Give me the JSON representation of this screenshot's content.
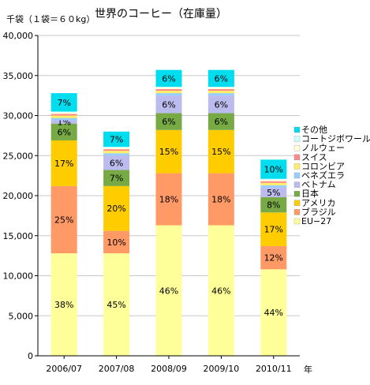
{
  "chart_data": {
    "type": "bar",
    "stacked": true,
    "title": "世界のコーヒー（在庫量）",
    "ylabel": "千袋（１袋＝６０kg）",
    "xlabel": "年",
    "ylim": [
      0,
      40000
    ],
    "yticks": [
      "0",
      "5,000",
      "10,000",
      "15,000",
      "20,000",
      "25,000",
      "30,000",
      "35,000",
      "40,000"
    ],
    "ytick_values": [
      0,
      5000,
      10000,
      15000,
      20000,
      25000,
      30000,
      35000,
      40000
    ],
    "grid": true,
    "legend_position": "right",
    "categories": [
      "2006/07",
      "2007/08",
      "2008/09",
      "2009/10",
      "2010/11"
    ],
    "series": [
      {
        "name": "EU−27",
        "color": "#FFFF99",
        "values": [
          12800,
          12800,
          16300,
          16300,
          10800
        ],
        "labels": [
          "38%",
          "45%",
          "46%",
          "46%",
          "44%"
        ]
      },
      {
        "name": "ブラジル",
        "color": "#FF9966",
        "values": [
          8400,
          2800,
          6500,
          6500,
          2900
        ],
        "labels": [
          "25%",
          "10%",
          "18%",
          "18%",
          "12%"
        ]
      },
      {
        "name": "アメリカ",
        "color": "#FFCC00",
        "values": [
          5700,
          5600,
          5400,
          5400,
          4200
        ],
        "labels": [
          "17%",
          "20%",
          "15%",
          "15%",
          "17%"
        ]
      },
      {
        "name": "日本",
        "color": "#77AA44",
        "values": [
          2100,
          2000,
          2100,
          2100,
          1900
        ],
        "labels": [
          "6%",
          "7%",
          "6%",
          "6%",
          "8%"
        ]
      },
      {
        "name": "ベトナム",
        "color": "#BBBBEE",
        "values": [
          400,
          1800,
          2200,
          2200,
          1200
        ],
        "labels": [
          "1%",
          "6%",
          "6%",
          "6%",
          "5%"
        ]
      },
      {
        "name": "ベネズエラ",
        "color": "#99CCFF",
        "values": [
          300,
          300,
          300,
          300,
          300
        ],
        "labels": [
          "",
          "",
          "",
          "",
          ""
        ]
      },
      {
        "name": "コロンビア",
        "color": "#FFEE66",
        "values": [
          300,
          300,
          300,
          300,
          300
        ],
        "labels": [
          "",
          "",
          "",
          "",
          ""
        ]
      },
      {
        "name": "スイス",
        "color": "#FF8888",
        "values": [
          200,
          200,
          200,
          200,
          200
        ],
        "labels": [
          "",
          "",
          "",
          "",
          ""
        ]
      },
      {
        "name": "ノルウェー",
        "color": "#FFFFE0",
        "values": [
          200,
          200,
          200,
          200,
          200
        ],
        "labels": [
          "",
          "",
          "",
          "",
          ""
        ]
      },
      {
        "name": "コートジボワール",
        "color": "#CCFFFF",
        "values": [
          100,
          100,
          100,
          100,
          100
        ],
        "labels": [
          "",
          "",
          "",
          "",
          ""
        ]
      },
      {
        "name": "その他",
        "color": "#00DDEE",
        "values": [
          2300,
          1900,
          2100,
          2100,
          2400
        ],
        "labels": [
          "7%",
          "7%",
          "6%",
          "6%",
          "10%"
        ]
      }
    ]
  }
}
